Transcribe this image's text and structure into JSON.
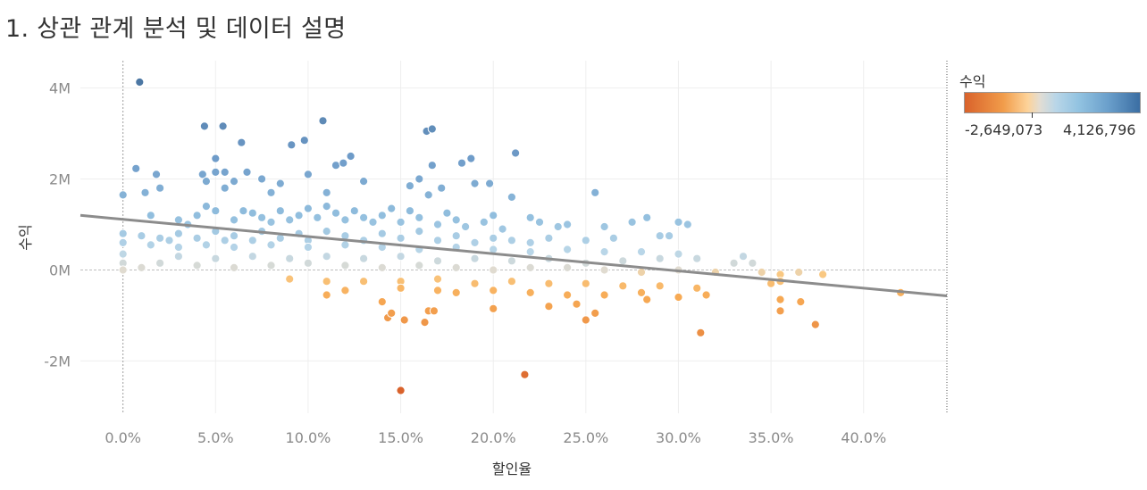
{
  "page": {
    "title": "1. 상관 관계 분석 및 데이터 설명"
  },
  "legend": {
    "title": "수익",
    "min_label": "-2,649,073",
    "max_label": "4,126,796",
    "colors": [
      "#d9622b",
      "#f19c4a",
      "#fdd39a",
      "#e2ddd3",
      "#b9d6e8",
      "#92c3e1",
      "#6a9fcb",
      "#3b6ea3"
    ]
  },
  "chart_data": {
    "type": "scatter",
    "title": "",
    "xlabel": "할인율",
    "ylabel": "수익",
    "xlim": [
      -0.023,
      0.445
    ],
    "ylim": [
      -3150000,
      4600000
    ],
    "x_ticks": [
      {
        "value": 0.0,
        "label": "0.0%"
      },
      {
        "value": 0.05,
        "label": "5.0%"
      },
      {
        "value": 0.1,
        "label": "10.0%"
      },
      {
        "value": 0.15,
        "label": "15.0%"
      },
      {
        "value": 0.2,
        "label": "20.0%"
      },
      {
        "value": 0.25,
        "label": "25.0%"
      },
      {
        "value": 0.3,
        "label": "30.0%"
      },
      {
        "value": 0.35,
        "label": "35.0%"
      },
      {
        "value": 0.4,
        "label": "40.0%"
      }
    ],
    "y_ticks": [
      {
        "value": 4000000,
        "label": "4M"
      },
      {
        "value": 2000000,
        "label": "2M"
      },
      {
        "value": 0,
        "label": "0M"
      },
      {
        "value": -2000000,
        "label": "-2M"
      }
    ],
    "color_min": -2649073,
    "color_max": 4126796,
    "trend_line": {
      "x": [
        -0.023,
        0.445
      ],
      "y": [
        1200000,
        -570000
      ]
    },
    "grid": true,
    "legend_position": "right",
    "points": [
      [
        0.009,
        4130000
      ],
      [
        0.044,
        3160000
      ],
      [
        0.054,
        3160000
      ],
      [
        0.108,
        3280000
      ],
      [
        0.164,
        3050000
      ],
      [
        0.167,
        3100000
      ],
      [
        0.064,
        2800000
      ],
      [
        0.091,
        2750000
      ],
      [
        0.098,
        2850000
      ],
      [
        0.212,
        2570000
      ],
      [
        0.05,
        2450000
      ],
      [
        0.007,
        2230000
      ],
      [
        0.05,
        2150000
      ],
      [
        0.055,
        2150000
      ],
      [
        0.067,
        2150000
      ],
      [
        0.115,
        2300000
      ],
      [
        0.119,
        2350000
      ],
      [
        0.123,
        2500000
      ],
      [
        0.167,
        2300000
      ],
      [
        0.183,
        2350000
      ],
      [
        0.188,
        2450000
      ],
      [
        0.018,
        2100000
      ],
      [
        0.043,
        2100000
      ],
      [
        0.1,
        2100000
      ],
      [
        0.045,
        1950000
      ],
      [
        0.06,
        1950000
      ],
      [
        0.075,
        2000000
      ],
      [
        0.085,
        1900000
      ],
      [
        0.13,
        1950000
      ],
      [
        0.16,
        2000000
      ],
      [
        0.172,
        1800000
      ],
      [
        0.19,
        1900000
      ],
      [
        0.198,
        1900000
      ],
      [
        0.255,
        1700000
      ],
      [
        0.0,
        1650000
      ],
      [
        0.012,
        1700000
      ],
      [
        0.02,
        1800000
      ],
      [
        0.055,
        1800000
      ],
      [
        0.08,
        1700000
      ],
      [
        0.11,
        1700000
      ],
      [
        0.155,
        1850000
      ],
      [
        0.165,
        1650000
      ],
      [
        0.21,
        1600000
      ],
      [
        0.015,
        1200000
      ],
      [
        0.03,
        1100000
      ],
      [
        0.035,
        1000000
      ],
      [
        0.04,
        1200000
      ],
      [
        0.045,
        1400000
      ],
      [
        0.05,
        1300000
      ],
      [
        0.06,
        1100000
      ],
      [
        0.065,
        1300000
      ],
      [
        0.07,
        1250000
      ],
      [
        0.075,
        1150000
      ],
      [
        0.08,
        1050000
      ],
      [
        0.085,
        1300000
      ],
      [
        0.09,
        1100000
      ],
      [
        0.095,
        1200000
      ],
      [
        0.1,
        1350000
      ],
      [
        0.105,
        1150000
      ],
      [
        0.11,
        1400000
      ],
      [
        0.115,
        1250000
      ],
      [
        0.12,
        1100000
      ],
      [
        0.125,
        1300000
      ],
      [
        0.13,
        1150000
      ],
      [
        0.135,
        1050000
      ],
      [
        0.14,
        1200000
      ],
      [
        0.145,
        1350000
      ],
      [
        0.15,
        1050000
      ],
      [
        0.155,
        1300000
      ],
      [
        0.16,
        1150000
      ],
      [
        0.17,
        1000000
      ],
      [
        0.175,
        1250000
      ],
      [
        0.18,
        1100000
      ],
      [
        0.185,
        950000
      ],
      [
        0.195,
        1050000
      ],
      [
        0.2,
        1200000
      ],
      [
        0.205,
        900000
      ],
      [
        0.22,
        1150000
      ],
      [
        0.225,
        1050000
      ],
      [
        0.235,
        950000
      ],
      [
        0.24,
        1000000
      ],
      [
        0.26,
        950000
      ],
      [
        0.275,
        1050000
      ],
      [
        0.283,
        1150000
      ],
      [
        0.3,
        1050000
      ],
      [
        0.305,
        1000000
      ],
      [
        0.0,
        800000
      ],
      [
        0.01,
        750000
      ],
      [
        0.02,
        700000
      ],
      [
        0.025,
        650000
      ],
      [
        0.03,
        800000
      ],
      [
        0.04,
        700000
      ],
      [
        0.05,
        850000
      ],
      [
        0.055,
        650000
      ],
      [
        0.06,
        750000
      ],
      [
        0.07,
        650000
      ],
      [
        0.075,
        850000
      ],
      [
        0.085,
        700000
      ],
      [
        0.095,
        800000
      ],
      [
        0.1,
        650000
      ],
      [
        0.11,
        850000
      ],
      [
        0.12,
        750000
      ],
      [
        0.13,
        650000
      ],
      [
        0.14,
        800000
      ],
      [
        0.15,
        700000
      ],
      [
        0.16,
        850000
      ],
      [
        0.17,
        650000
      ],
      [
        0.18,
        750000
      ],
      [
        0.19,
        600000
      ],
      [
        0.2,
        700000
      ],
      [
        0.21,
        650000
      ],
      [
        0.22,
        600000
      ],
      [
        0.23,
        700000
      ],
      [
        0.25,
        650000
      ],
      [
        0.265,
        700000
      ],
      [
        0.29,
        750000
      ],
      [
        0.295,
        750000
      ],
      [
        0.0,
        600000
      ],
      [
        0.015,
        550000
      ],
      [
        0.03,
        500000
      ],
      [
        0.045,
        550000
      ],
      [
        0.06,
        500000
      ],
      [
        0.08,
        550000
      ],
      [
        0.1,
        500000
      ],
      [
        0.12,
        550000
      ],
      [
        0.14,
        500000
      ],
      [
        0.16,
        450000
      ],
      [
        0.18,
        500000
      ],
      [
        0.2,
        450000
      ],
      [
        0.22,
        400000
      ],
      [
        0.24,
        450000
      ],
      [
        0.26,
        400000
      ],
      [
        0.28,
        400000
      ],
      [
        0.3,
        350000
      ],
      [
        0.0,
        350000
      ],
      [
        0.03,
        300000
      ],
      [
        0.05,
        250000
      ],
      [
        0.07,
        300000
      ],
      [
        0.09,
        250000
      ],
      [
        0.11,
        300000
      ],
      [
        0.13,
        250000
      ],
      [
        0.15,
        300000
      ],
      [
        0.17,
        200000
      ],
      [
        0.19,
        250000
      ],
      [
        0.21,
        200000
      ],
      [
        0.23,
        250000
      ],
      [
        0.25,
        150000
      ],
      [
        0.27,
        200000
      ],
      [
        0.29,
        250000
      ],
      [
        0.31,
        250000
      ],
      [
        0.33,
        150000
      ],
      [
        0.335,
        300000
      ],
      [
        0.34,
        150000
      ],
      [
        0.0,
        150000
      ],
      [
        0.02,
        150000
      ],
      [
        0.04,
        100000
      ],
      [
        0.06,
        50000
      ],
      [
        0.08,
        100000
      ],
      [
        0.1,
        150000
      ],
      [
        0.12,
        100000
      ],
      [
        0.14,
        50000
      ],
      [
        0.16,
        100000
      ],
      [
        0.18,
        50000
      ],
      [
        0.2,
        0
      ],
      [
        0.22,
        50000
      ],
      [
        0.24,
        50000
      ],
      [
        0.26,
        0
      ],
      [
        0.28,
        -50000
      ],
      [
        0.3,
        0
      ],
      [
        0.32,
        -50000
      ],
      [
        0.345,
        -50000
      ],
      [
        0.355,
        -100000
      ],
      [
        0.365,
        -50000
      ],
      [
        0.378,
        -100000
      ],
      [
        0.0,
        0
      ],
      [
        0.01,
        50000
      ],
      [
        0.09,
        -200000
      ],
      [
        0.11,
        -250000
      ],
      [
        0.13,
        -250000
      ],
      [
        0.15,
        -250000
      ],
      [
        0.17,
        -200000
      ],
      [
        0.19,
        -300000
      ],
      [
        0.21,
        -250000
      ],
      [
        0.23,
        -300000
      ],
      [
        0.25,
        -300000
      ],
      [
        0.27,
        -350000
      ],
      [
        0.29,
        -350000
      ],
      [
        0.31,
        -400000
      ],
      [
        0.35,
        -300000
      ],
      [
        0.355,
        -250000
      ],
      [
        0.11,
        -550000
      ],
      [
        0.12,
        -450000
      ],
      [
        0.15,
        -400000
      ],
      [
        0.17,
        -450000
      ],
      [
        0.18,
        -500000
      ],
      [
        0.2,
        -450000
      ],
      [
        0.22,
        -500000
      ],
      [
        0.24,
        -550000
      ],
      [
        0.26,
        -550000
      ],
      [
        0.28,
        -500000
      ],
      [
        0.3,
        -600000
      ],
      [
        0.315,
        -550000
      ],
      [
        0.14,
        -700000
      ],
      [
        0.165,
        -900000
      ],
      [
        0.168,
        -900000
      ],
      [
        0.2,
        -850000
      ],
      [
        0.23,
        -800000
      ],
      [
        0.245,
        -750000
      ],
      [
        0.255,
        -950000
      ],
      [
        0.283,
        -650000
      ],
      [
        0.355,
        -650000
      ],
      [
        0.366,
        -700000
      ],
      [
        0.42,
        -500000
      ],
      [
        0.143,
        -1050000
      ],
      [
        0.145,
        -950000
      ],
      [
        0.152,
        -1100000
      ],
      [
        0.163,
        -1150000
      ],
      [
        0.25,
        -1100000
      ],
      [
        0.355,
        -900000
      ],
      [
        0.374,
        -1200000
      ],
      [
        0.312,
        -1380000
      ],
      [
        0.15,
        -2650000
      ],
      [
        0.217,
        -2300000
      ]
    ]
  }
}
